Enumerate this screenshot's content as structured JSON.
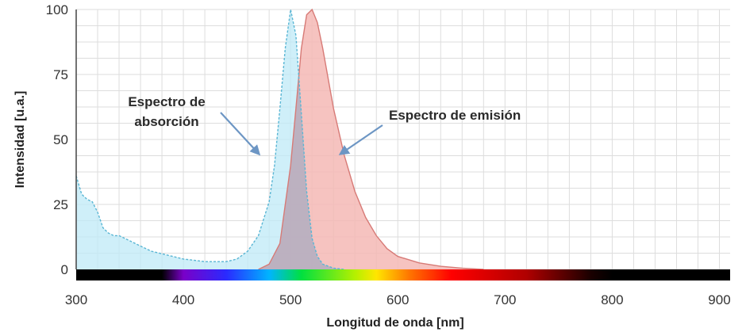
{
  "chart_data": {
    "type": "area",
    "xlabel": "Longitud de onda [nm]",
    "ylabel": "Intensidad [u.a.]",
    "xlim": [
      300,
      910
    ],
    "ylim": [
      0,
      100
    ],
    "x_ticks": [
      300,
      400,
      500,
      600,
      700,
      800,
      900
    ],
    "y_ticks": [
      0,
      25,
      50,
      75,
      100
    ],
    "grid": true,
    "colors": {
      "absorption_fill": "#bfe9f7",
      "absorption_line": "#5ab6d4",
      "emission_fill": "#f5b8b5",
      "emission_line": "#d77a76",
      "overlap_fill": "#b8a8b8",
      "arrow": "#6d96c4",
      "grid": "#dddddd"
    },
    "series": [
      {
        "points": [
          [
            300,
            36
          ],
          [
            305,
            29
          ],
          [
            310,
            27
          ],
          [
            315,
            26
          ],
          [
            320,
            22
          ],
          [
            325,
            16
          ],
          [
            330,
            14
          ],
          [
            335,
            13
          ],
          [
            340,
            13
          ],
          [
            345,
            12
          ],
          [
            350,
            11
          ],
          [
            360,
            9
          ],
          [
            370,
            7
          ],
          [
            380,
            6
          ],
          [
            390,
            5
          ],
          [
            400,
            4
          ],
          [
            410,
            3.5
          ],
          [
            420,
            3
          ],
          [
            430,
            3
          ],
          [
            440,
            3
          ],
          [
            450,
            4
          ],
          [
            460,
            7
          ],
          [
            470,
            13
          ],
          [
            480,
            26
          ],
          [
            485,
            40
          ],
          [
            490,
            62
          ],
          [
            495,
            85
          ],
          [
            500,
            100
          ],
          [
            505,
            90
          ],
          [
            510,
            60
          ],
          [
            515,
            30
          ],
          [
            520,
            12
          ],
          [
            525,
            5
          ],
          [
            530,
            2
          ],
          [
            540,
            0.5
          ],
          [
            550,
            0
          ]
        ]
      },
      {
        "points": [
          [
            470,
            0
          ],
          [
            480,
            2
          ],
          [
            490,
            10
          ],
          [
            500,
            40
          ],
          [
            505,
            62
          ],
          [
            510,
            85
          ],
          [
            515,
            98
          ],
          [
            520,
            100
          ],
          [
            525,
            95
          ],
          [
            530,
            85
          ],
          [
            540,
            62
          ],
          [
            550,
            44
          ],
          [
            560,
            30
          ],
          [
            570,
            20
          ],
          [
            580,
            13
          ],
          [
            590,
            8
          ],
          [
            600,
            5
          ],
          [
            620,
            2.5
          ],
          [
            640,
            1.2
          ],
          [
            660,
            0.5
          ],
          [
            680,
            0
          ]
        ]
      }
    ],
    "annotations": [
      {
        "lines": [
          "Espectro de",
          "absorción"
        ],
        "arrow_to": [
          475,
          45
        ]
      },
      {
        "lines": [
          "Espectro de emisión"
        ],
        "arrow_to": [
          542,
          45
        ]
      }
    ],
    "spectrum_bar": {
      "range": [
        300,
        910
      ],
      "stops": [
        {
          "nm": 300,
          "color": "#000000"
        },
        {
          "nm": 380,
          "color": "#000000"
        },
        {
          "nm": 400,
          "color": "#7a00c8"
        },
        {
          "nm": 440,
          "color": "#2a2aff"
        },
        {
          "nm": 480,
          "color": "#00b4ff"
        },
        {
          "nm": 510,
          "color": "#00e040"
        },
        {
          "nm": 560,
          "color": "#b4f000"
        },
        {
          "nm": 580,
          "color": "#ffe600"
        },
        {
          "nm": 610,
          "color": "#ff7800"
        },
        {
          "nm": 650,
          "color": "#ff0000"
        },
        {
          "nm": 720,
          "color": "#b00000"
        },
        {
          "nm": 780,
          "color": "#1a0000"
        },
        {
          "nm": 800,
          "color": "#000000"
        },
        {
          "nm": 910,
          "color": "#000000"
        }
      ]
    }
  }
}
